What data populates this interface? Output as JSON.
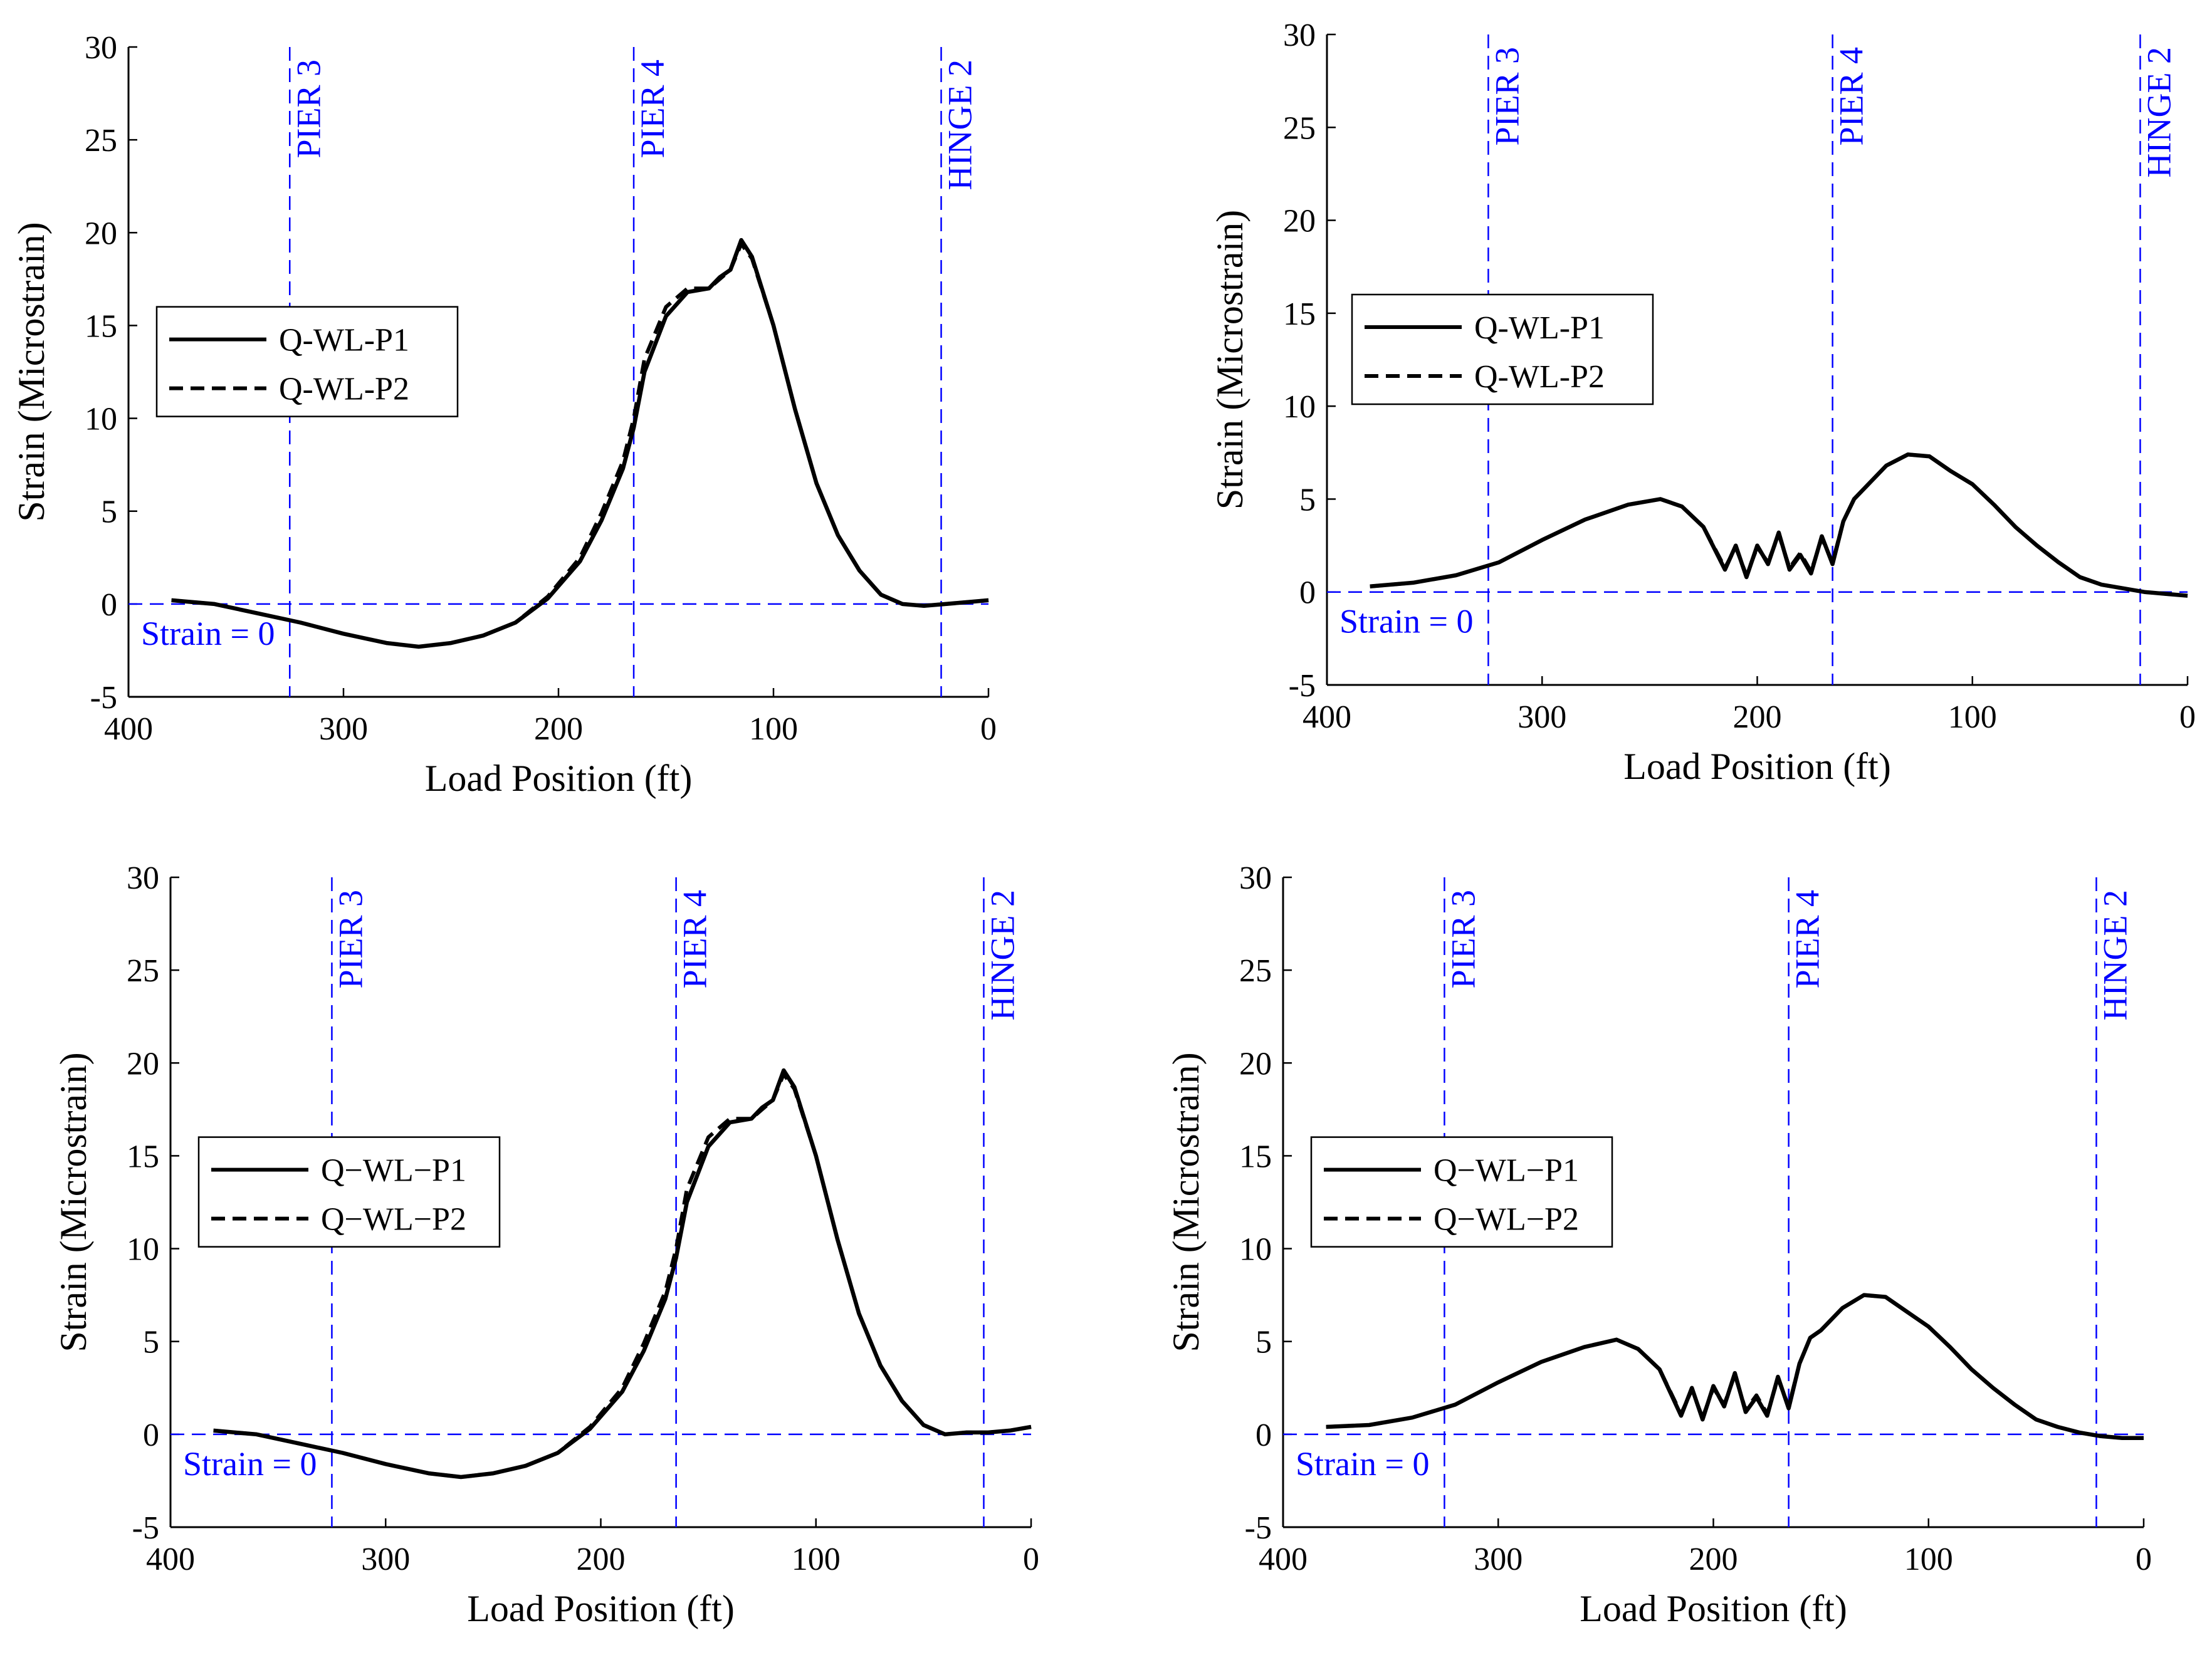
{
  "colors": {
    "series": "#000000",
    "reference": "#0000ff",
    "axes": "#000000",
    "background": "#ffffff"
  },
  "chart_data": [
    {
      "type": "line",
      "xlabel": "Load Position (ft)",
      "ylabel": "Strain (Microstrain)",
      "xlim": [
        400,
        0
      ],
      "ylim": [
        -5,
        30
      ],
      "x_reversed": true,
      "xticks": [
        400,
        300,
        200,
        100,
        0
      ],
      "yticks": [
        -5,
        0,
        5,
        10,
        15,
        20,
        25,
        30
      ],
      "grid": false,
      "legend_position": "left",
      "reference_lines": [
        {
          "label": "PIER 3",
          "x": 325
        },
        {
          "label": "PIER 4",
          "x": 165
        },
        {
          "label": "HINGE 2",
          "x": 22
        }
      ],
      "zero_line_label": "Strain = 0",
      "series": [
        {
          "name": "Q-WL-P1",
          "style": "solid",
          "x": [
            380,
            360,
            340,
            320,
            300,
            280,
            265,
            250,
            235,
            220,
            205,
            190,
            180,
            170,
            165,
            160,
            150,
            140,
            130,
            125,
            120,
            115,
            110,
            100,
            90,
            80,
            70,
            60,
            50,
            40,
            30,
            20,
            10,
            0
          ],
          "y": [
            0.2,
            0.0,
            -0.5,
            -1.0,
            -1.6,
            -2.1,
            -2.3,
            -2.1,
            -1.7,
            -1.0,
            0.3,
            2.3,
            4.5,
            7.3,
            9.5,
            12.5,
            15.5,
            16.8,
            17.0,
            17.6,
            18.0,
            19.6,
            18.7,
            15.0,
            10.5,
            6.5,
            3.7,
            1.8,
            0.5,
            0.0,
            -0.1,
            0.0,
            0.1,
            0.2
          ]
        },
        {
          "name": "Q-WL-P2",
          "style": "dashed",
          "x": [
            380,
            360,
            340,
            320,
            300,
            280,
            265,
            250,
            235,
            220,
            205,
            190,
            180,
            170,
            165,
            160,
            150,
            140,
            130,
            125,
            120,
            115,
            110,
            100,
            90,
            80,
            70,
            60,
            50,
            40,
            30,
            20,
            10,
            0
          ],
          "y": [
            0.2,
            0.0,
            -0.5,
            -1.0,
            -1.6,
            -2.1,
            -2.3,
            -2.1,
            -1.7,
            -1.0,
            0.4,
            2.5,
            4.9,
            7.7,
            10.0,
            13.2,
            16.0,
            17.0,
            17.0,
            17.5,
            18.0,
            19.4,
            18.6,
            15.0,
            10.5,
            6.5,
            3.7,
            1.8,
            0.5,
            0.0,
            -0.1,
            0.0,
            0.1,
            0.2
          ]
        }
      ]
    },
    {
      "type": "line",
      "xlabel": "Load Position (ft)",
      "ylabel": "Strain (Microstrain)",
      "xlim": [
        400,
        0
      ],
      "ylim": [
        -5,
        30
      ],
      "x_reversed": true,
      "xticks": [
        400,
        300,
        200,
        100,
        0
      ],
      "yticks": [
        -5,
        0,
        5,
        10,
        15,
        20,
        25,
        30
      ],
      "grid": false,
      "legend_position": "left",
      "reference_lines": [
        {
          "label": "PIER 3",
          "x": 325
        },
        {
          "label": "PIER 4",
          "x": 165
        },
        {
          "label": "HINGE 2",
          "x": 22
        }
      ],
      "zero_line_label": "Strain = 0",
      "series": [
        {
          "name": "Q-WL-P1",
          "style": "solid",
          "x": [
            380,
            360,
            340,
            320,
            300,
            280,
            260,
            245,
            235,
            225,
            215,
            210,
            205,
            200,
            195,
            190,
            185,
            180,
            175,
            170,
            165,
            160,
            155,
            150,
            140,
            130,
            120,
            110,
            100,
            90,
            80,
            70,
            60,
            50,
            40,
            30,
            20,
            10,
            0
          ],
          "y": [
            0.3,
            0.5,
            0.9,
            1.6,
            2.8,
            3.9,
            4.7,
            5.0,
            4.6,
            3.5,
            1.2,
            2.5,
            0.8,
            2.5,
            1.5,
            3.2,
            1.2,
            2.0,
            1.0,
            3.0,
            1.5,
            3.8,
            5.0,
            5.6,
            6.8,
            7.4,
            7.3,
            6.5,
            5.8,
            4.7,
            3.5,
            2.5,
            1.6,
            0.8,
            0.4,
            0.2,
            0.0,
            -0.1,
            -0.2
          ]
        },
        {
          "name": "Q-WL-P2",
          "style": "dashed",
          "x": [
            380,
            360,
            340,
            320,
            300,
            280,
            260,
            245,
            235,
            225,
            215,
            210,
            205,
            200,
            195,
            190,
            185,
            180,
            175,
            170,
            165,
            160,
            155,
            150,
            140,
            130,
            120,
            110,
            100,
            90,
            80,
            70,
            60,
            50,
            40,
            30,
            20,
            10,
            0
          ],
          "y": [
            0.3,
            0.5,
            0.9,
            1.6,
            2.8,
            3.9,
            4.7,
            5.0,
            4.6,
            3.5,
            1.3,
            2.4,
            0.9,
            2.4,
            1.6,
            3.1,
            1.3,
            2.1,
            1.1,
            2.9,
            1.6,
            3.8,
            5.0,
            5.6,
            6.8,
            7.4,
            7.3,
            6.5,
            5.8,
            4.7,
            3.5,
            2.5,
            1.6,
            0.8,
            0.4,
            0.2,
            0.0,
            -0.1,
            -0.2
          ]
        }
      ]
    },
    {
      "type": "line",
      "xlabel": "Load Position (ft)",
      "ylabel": "Strain (Microstrain)",
      "xlim": [
        400,
        0
      ],
      "ylim": [
        -5,
        30
      ],
      "x_reversed": true,
      "xticks": [
        400,
        300,
        200,
        100,
        0
      ],
      "yticks": [
        -5,
        0,
        5,
        10,
        15,
        20,
        25,
        30
      ],
      "grid": false,
      "legend_position": "left",
      "reference_lines": [
        {
          "label": "PIER 3",
          "x": 325
        },
        {
          "label": "PIER 4",
          "x": 165
        },
        {
          "label": "HINGE 2",
          "x": 22
        }
      ],
      "zero_line_label": "Strain = 0",
      "series": [
        {
          "name": "Q−WL−P1",
          "style": "solid",
          "x": [
            380,
            360,
            340,
            320,
            300,
            280,
            265,
            250,
            235,
            220,
            205,
            190,
            180,
            170,
            165,
            160,
            150,
            140,
            130,
            125,
            120,
            115,
            110,
            100,
            90,
            80,
            70,
            60,
            50,
            40,
            30,
            20,
            10,
            0
          ],
          "y": [
            0.2,
            0.0,
            -0.5,
            -1.0,
            -1.6,
            -2.1,
            -2.3,
            -2.1,
            -1.7,
            -1.0,
            0.3,
            2.3,
            4.5,
            7.3,
            9.5,
            12.5,
            15.5,
            16.8,
            17.0,
            17.6,
            18.0,
            19.6,
            18.7,
            15.0,
            10.5,
            6.5,
            3.7,
            1.8,
            0.5,
            0.0,
            0.1,
            0.1,
            0.2,
            0.4
          ]
        },
        {
          "name": "Q−WL−P2",
          "style": "dashed",
          "x": [
            380,
            360,
            340,
            320,
            300,
            280,
            265,
            250,
            235,
            220,
            205,
            190,
            180,
            170,
            165,
            160,
            150,
            140,
            130,
            125,
            120,
            115,
            110,
            100,
            90,
            80,
            70,
            60,
            50,
            40,
            30,
            20,
            10,
            0
          ],
          "y": [
            0.2,
            0.0,
            -0.5,
            -1.0,
            -1.6,
            -2.1,
            -2.3,
            -2.1,
            -1.7,
            -1.0,
            0.4,
            2.5,
            4.9,
            7.7,
            10.0,
            13.2,
            16.0,
            17.0,
            17.0,
            17.5,
            18.0,
            19.4,
            18.6,
            15.0,
            10.5,
            6.5,
            3.7,
            1.8,
            0.5,
            0.0,
            0.1,
            0.1,
            0.2,
            0.4
          ]
        }
      ]
    },
    {
      "type": "line",
      "xlabel": "Load Position (ft)",
      "ylabel": "Strain (Microstrain)",
      "xlim": [
        400,
        0
      ],
      "ylim": [
        -5,
        30
      ],
      "x_reversed": true,
      "xticks": [
        400,
        300,
        200,
        100,
        0
      ],
      "yticks": [
        -5,
        0,
        5,
        10,
        15,
        20,
        25,
        30
      ],
      "grid": false,
      "legend_position": "left",
      "reference_lines": [
        {
          "label": "PIER 3",
          "x": 325
        },
        {
          "label": "PIER 4",
          "x": 165
        },
        {
          "label": "HINGE 2",
          "x": 22
        }
      ],
      "zero_line_label": "Strain = 0",
      "series": [
        {
          "name": "Q−WL−P1",
          "style": "solid",
          "x": [
            380,
            360,
            340,
            320,
            300,
            280,
            260,
            245,
            235,
            225,
            215,
            210,
            205,
            200,
            195,
            190,
            185,
            180,
            175,
            170,
            165,
            160,
            155,
            150,
            140,
            130,
            120,
            110,
            100,
            90,
            80,
            70,
            60,
            50,
            40,
            30,
            20,
            10,
            0
          ],
          "y": [
            0.4,
            0.5,
            0.9,
            1.6,
            2.8,
            3.9,
            4.7,
            5.1,
            4.6,
            3.5,
            1.0,
            2.5,
            0.8,
            2.6,
            1.5,
            3.3,
            1.2,
            2.0,
            1.0,
            3.1,
            1.4,
            3.8,
            5.2,
            5.6,
            6.8,
            7.5,
            7.4,
            6.6,
            5.8,
            4.7,
            3.5,
            2.5,
            1.6,
            0.8,
            0.4,
            0.1,
            -0.1,
            -0.2,
            -0.2
          ]
        },
        {
          "name": "Q−WL−P2",
          "style": "dashed",
          "x": [
            380,
            360,
            340,
            320,
            300,
            280,
            260,
            245,
            235,
            225,
            215,
            210,
            205,
            200,
            195,
            190,
            185,
            180,
            175,
            170,
            165,
            160,
            155,
            150,
            140,
            130,
            120,
            110,
            100,
            90,
            80,
            70,
            60,
            50,
            40,
            30,
            20,
            10,
            0
          ],
          "y": [
            0.4,
            0.5,
            0.9,
            1.6,
            2.8,
            3.9,
            4.7,
            5.1,
            4.6,
            3.5,
            1.1,
            2.4,
            0.9,
            2.5,
            1.6,
            3.2,
            1.3,
            2.1,
            1.1,
            3.0,
            1.5,
            3.8,
            5.2,
            5.6,
            6.8,
            7.5,
            7.4,
            6.6,
            5.8,
            4.7,
            3.5,
            2.5,
            1.6,
            0.8,
            0.4,
            0.1,
            -0.1,
            -0.2,
            -0.2
          ]
        }
      ]
    }
  ]
}
